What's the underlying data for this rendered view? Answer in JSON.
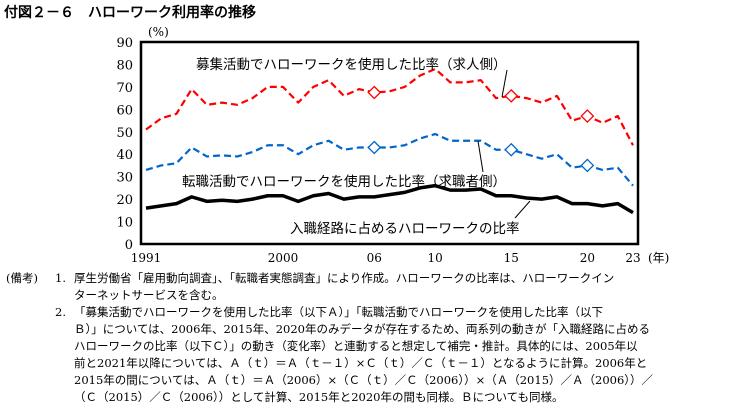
{
  "title": "付図２－６　ハローワーク利用率の推移",
  "chart_data": {
    "type": "line",
    "ylabel": "(%)",
    "xlabel": "(年)",
    "ylim": [
      0,
      90
    ],
    "yticks": [
      0,
      10,
      20,
      30,
      40,
      50,
      60,
      70,
      80,
      90
    ],
    "x": [
      1991,
      1992,
      1993,
      1994,
      1995,
      1996,
      1997,
      1998,
      1999,
      2000,
      2001,
      2002,
      2003,
      2004,
      2005,
      2006,
      2007,
      2008,
      2009,
      2010,
      2011,
      2012,
      2013,
      2014,
      2015,
      2016,
      2017,
      2018,
      2019,
      2020,
      2021,
      2022,
      2023
    ],
    "xticklabels": [
      {
        "year": 1991,
        "label": "1991"
      },
      {
        "year": 2000,
        "label": "2000"
      },
      {
        "year": 2006,
        "label": "06"
      },
      {
        "year": 2010,
        "label": "10"
      },
      {
        "year": 2015,
        "label": "15"
      },
      {
        "year": 2020,
        "label": "20"
      },
      {
        "year": 2023,
        "label": "23"
      }
    ],
    "marker_years": [
      2006,
      2015,
      2020
    ],
    "series": [
      {
        "name": "募集活動でハローワークを使用した比率（求人側）",
        "color": "#ff0000",
        "style": "dashed",
        "values": [
          51,
          56,
          58,
          69,
          62,
          63,
          62,
          65,
          70,
          70,
          63,
          70,
          73,
          66,
          69,
          67.5,
          68,
          70,
          75,
          78,
          72,
          72,
          73,
          65,
          66,
          65,
          63,
          66,
          55,
          57,
          54,
          57,
          44
        ]
      },
      {
        "name": "転職活動でハローワークを使用した比率（求職者側）",
        "color": "#0066cc",
        "style": "dashed",
        "values": [
          33,
          35,
          36,
          43,
          39,
          39.5,
          39,
          41,
          44,
          44,
          40,
          44,
          46,
          42,
          43,
          43,
          43,
          44,
          47,
          49,
          46,
          46,
          46,
          42,
          42,
          40,
          38,
          40,
          34,
          35,
          33,
          34,
          26
        ]
      },
      {
        "name": "入職経路に占めるハローワークの比率",
        "color": "#000000",
        "style": "solid",
        "values": [
          16,
          17,
          18,
          21,
          19,
          19.5,
          19,
          20,
          21.5,
          21.5,
          19,
          21.5,
          22.5,
          20,
          21,
          21,
          22,
          23,
          25,
          26,
          24,
          24,
          24.5,
          21.5,
          21.5,
          20.5,
          20,
          21,
          18,
          18,
          17,
          18,
          14
        ]
      }
    ]
  },
  "notes": {
    "label": "(備考)",
    "items": [
      {
        "num": "1.",
        "lines": [
          "厚生労働省「雇用動向調査」、「転職者実態調査」により作成。ハローワークの比率は、ハローワークイン",
          "ターネットサービスを含む。"
        ]
      },
      {
        "num": "2.",
        "lines": [
          "「募集活動でハローワークを使用した比率（以下Ａ）」「転職活動でハローワークを使用した比率（以下",
          "Ｂ）」については、2006年、2015年、2020年のみデータが存在するため、両系列の動きが「入職経路に占める",
          "ハローワークの比率（以下Ｃ）」の動き（変化率）と連動すると想定して補完・推計。具体的には、2005年以",
          "前と2021年以降については、Ａ（ｔ）＝Ａ（ｔ－１）×Ｃ（ｔ）／Ｃ（ｔ－１）となるように計算。2006年と",
          "2015年の間については、Ａ（ｔ）＝Ａ（2006）×（Ｃ（ｔ）／Ｃ（2006））×（Ａ（2015）／Ａ（2006））／",
          "（Ｃ（2015）／Ｃ（2006））として計算、2015年と2020年の間も同様。Ｂについても同様。"
        ]
      }
    ]
  }
}
